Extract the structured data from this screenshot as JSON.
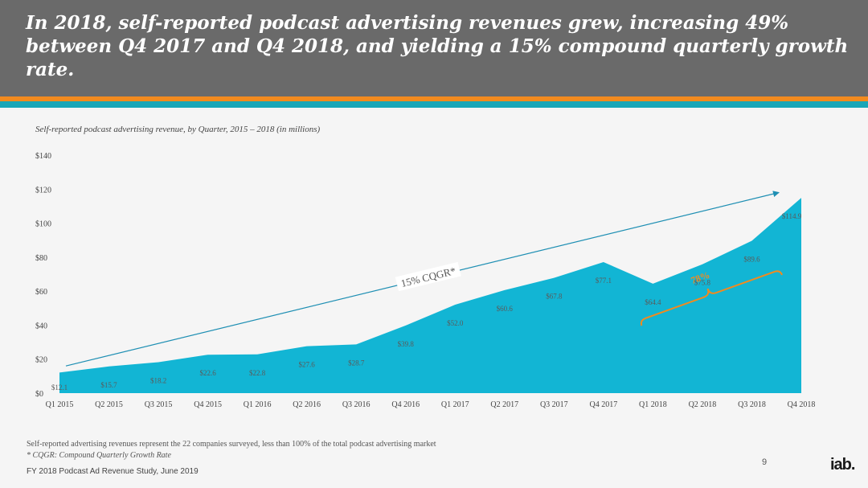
{
  "header": {
    "headline": "In 2018, self-reported podcast advertising revenues grew, increasing 49% between Q4 2017 and Q4 2018, and yielding a 15% compound quarterly growth rate."
  },
  "colors": {
    "header_bg": "#6a6a6a",
    "accent_orange": "#f28a1e",
    "accent_teal": "#1aa6b7",
    "area_fill": "#12b5d4",
    "trend_line": "#1e8fb3"
  },
  "chart_data": {
    "type": "area",
    "title": "Self-reported podcast advertising revenue, by Quarter, 2015 – 2018 (in millions)",
    "categories": [
      "Q1 2015",
      "Q2 2015",
      "Q3 2015",
      "Q4 2015",
      "Q1 2016",
      "Q2 2016",
      "Q3 2016",
      "Q4 2016",
      "Q1 2017",
      "Q2 2017",
      "Q3 2017",
      "Q4 2017",
      "Q1 2018",
      "Q2 2018",
      "Q3 2018",
      "Q4 2018"
    ],
    "values": [
      12.1,
      15.7,
      18.2,
      22.6,
      22.8,
      27.6,
      28.7,
      39.8,
      52.0,
      60.6,
      67.8,
      77.1,
      64.4,
      75.8,
      89.6,
      114.9
    ],
    "data_labels": [
      "$12.1",
      "$15.7",
      "$18.2",
      "$22.6",
      "$22.8",
      "$27.6",
      "$28.7",
      "$39.8",
      "$52.0",
      "$60.6",
      "$67.8",
      "$77.1",
      "$64.4",
      "$75.8",
      "$89.6",
      "$114.9"
    ],
    "yticks": [
      "$0",
      "$20",
      "$40",
      "$60",
      "$80",
      "$100",
      "$120",
      "$140"
    ],
    "ylim": [
      0,
      140
    ],
    "grid": false,
    "annotations": [
      {
        "text": "15% CQGR*",
        "kind": "trend-arrow",
        "from": [
          0,
          16
        ],
        "to": [
          15,
          118
        ]
      },
      {
        "text": "78%",
        "kind": "bracket",
        "from_index": 12,
        "to_index": 15
      }
    ]
  },
  "footnotes": {
    "note": "Self-reported advertising revenues represent the 22 companies surveyed, less than 100% of the total podcast advertising market",
    "definition": "* CQGR: Compound Quarterly Growth Rate",
    "source": "FY 2018 Podcast Ad Revenue Study, June 2019"
  },
  "page_number": "9",
  "logo_text": "iab."
}
